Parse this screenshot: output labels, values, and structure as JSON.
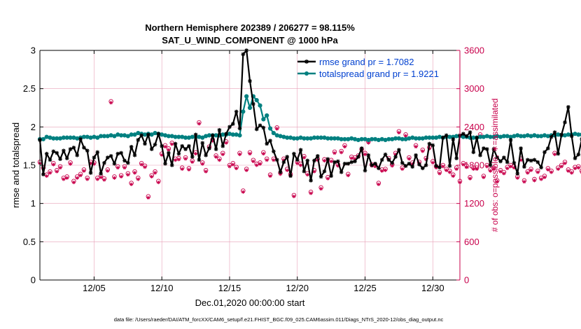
{
  "title_line1": "Northern Hemisphere 202389 / 206277 = 98.115%",
  "title_line2": "SAT_U_WIND_COMPONENT @ 1000 hPa",
  "xlabel": "Dec.01,2020 00:00:00 start",
  "ylabel_left": "rmse and totalspread",
  "ylabel_right": "# of obs: o=possible; ∗=assimilated",
  "footer": "data file: /Users/raeder/DAI/ATM_forcXX/CAM6_setup/f.e21.FHIST_BGC.f09_025.CAM6assim.011/Diags_NTrS_2020-12/obs_diag_output.nc",
  "colors": {
    "rmse": "#000000",
    "spread": "#008080",
    "obs": "#c8004b",
    "grid": "#e8a0b8",
    "legend_text": "#0040d0"
  },
  "chart_data": {
    "type": "line",
    "title": "Northern Hemisphere 202389 / 206277 = 98.115% — SAT_U_WIND_COMPONENT @ 1000 hPa",
    "xlabel": "Dec.01,2020 00:00:00 start",
    "ylabel": "rmse and totalspread",
    "y2label": "# of obs: o=possible; ∗=assimilated",
    "xlim": [
      1,
      32
    ],
    "ylim": [
      0,
      3
    ],
    "y2lim": [
      0,
      3600
    ],
    "x_ticks": [
      {
        "day": 5,
        "label": "12/05"
      },
      {
        "day": 10,
        "label": "12/10"
      },
      {
        "day": 15,
        "label": "12/15"
      },
      {
        "day": 20,
        "label": "12/20"
      },
      {
        "day": 25,
        "label": "12/25"
      },
      {
        "day": 30,
        "label": "12/30"
      }
    ],
    "y_ticks": [
      "0",
      "0.5",
      "1",
      "1.5",
      "2",
      "2.5",
      "3"
    ],
    "y2_ticks": [
      "0",
      "600",
      "1200",
      "1800",
      "2400",
      "3000",
      "3600"
    ],
    "legend": [
      {
        "name": "rmse grand pr = 1.7082",
        "series": "rmse"
      },
      {
        "name": "totalspread grand pr = 1.9221",
        "series": "totalspread"
      }
    ],
    "series": [
      {
        "name": "rmse",
        "values": [
          1.83,
          1.38,
          1.65,
          1.57,
          1.68,
          1.66,
          1.58,
          1.69,
          1.59,
          1.71,
          1.73,
          1.63,
          1.84,
          1.73,
          1.69,
          1.4,
          1.6,
          1.67,
          1.39,
          1.53,
          1.6,
          1.62,
          1.52,
          1.65,
          1.66,
          1.56,
          1.53,
          1.74,
          1.63,
          1.83,
          1.89,
          1.78,
          1.9,
          1.71,
          1.77,
          1.91,
          1.75,
          1.52,
          1.66,
          1.5,
          1.78,
          1.65,
          1.75,
          1.71,
          1.75,
          1.61,
          1.9,
          1.57,
          1.79,
          1.63,
          1.72,
          1.89,
          1.71,
          1.96,
          1.75,
          1.91,
          2.0,
          2.04,
          2.2,
          1.98,
          2.95,
          3.0,
          2.6,
          2.3,
          1.97,
          2.02,
          1.99,
          1.78,
          1.82,
          1.68,
          1.57,
          1.41,
          1.54,
          1.61,
          1.36,
          1.65,
          1.57,
          1.7,
          1.42,
          1.56,
          1.3,
          1.56,
          1.62,
          1.35,
          1.42,
          1.58,
          1.36,
          1.54,
          1.55,
          1.41,
          1.52,
          1.52,
          1.54,
          1.55,
          1.61,
          1.72,
          1.43,
          1.63,
          1.5,
          1.52,
          1.46,
          1.57,
          1.64,
          1.57,
          1.53,
          1.61,
          1.7,
          1.53,
          1.49,
          1.52,
          1.48,
          1.63,
          1.51,
          1.46,
          1.5,
          1.78,
          1.76,
          1.49,
          1.47,
          1.86,
          1.89,
          1.49,
          1.84,
          1.59,
          1.89,
          1.91,
          1.88,
          1.93,
          1.67,
          1.86,
          1.63,
          1.72,
          1.71,
          1.5,
          1.71,
          1.6,
          1.55,
          1.6,
          1.54,
          1.83,
          1.53,
          1.39,
          1.72,
          1.48,
          1.57,
          1.56,
          1.57,
          1.54,
          1.47,
          1.67,
          1.72,
          1.87,
          1.93,
          1.65,
          1.9,
          2.06,
          2.26,
          1.88,
          1.59,
          1.64,
          1.84,
          1.86,
          1.65,
          1.58,
          1.83,
          1.99,
          1.79,
          1.67,
          1.4,
          1.57,
          1.57,
          1.61
        ]
      },
      {
        "name": "totalspread",
        "values": [
          1.84,
          1.84,
          1.87,
          1.86,
          1.85,
          1.85,
          1.85,
          1.86,
          1.86,
          1.86,
          1.86,
          1.85,
          1.86,
          1.87,
          1.87,
          1.86,
          1.87,
          1.86,
          1.88,
          1.88,
          1.88,
          1.89,
          1.88,
          1.9,
          1.89,
          1.89,
          1.88,
          1.9,
          1.9,
          1.92,
          1.91,
          1.9,
          1.91,
          1.9,
          1.92,
          1.91,
          1.9,
          1.89,
          1.88,
          1.88,
          1.87,
          1.87,
          1.87,
          1.86,
          1.86,
          1.87,
          1.87,
          1.87,
          1.86,
          1.88,
          1.89,
          1.89,
          1.89,
          1.89,
          1.9,
          1.9,
          1.91,
          1.9,
          1.9,
          1.89,
          2.2,
          2.4,
          2.25,
          2.4,
          2.35,
          2.28,
          2.1,
          2.15,
          1.98,
          1.92,
          1.89,
          1.88,
          1.87,
          1.86,
          1.86,
          1.85,
          1.85,
          1.86,
          1.85,
          1.85,
          1.85,
          1.86,
          1.86,
          1.86,
          1.86,
          1.85,
          1.85,
          1.85,
          1.85,
          1.84,
          1.84,
          1.84,
          1.85,
          1.84,
          1.83,
          1.84,
          1.84,
          1.83,
          1.84,
          1.84,
          1.83,
          1.84,
          1.83,
          1.84,
          1.84,
          1.85,
          1.85,
          1.84,
          1.84,
          1.85,
          1.86,
          1.85,
          1.85,
          1.85,
          1.86,
          1.86,
          1.86,
          1.86,
          1.87,
          1.86,
          1.87,
          1.87,
          1.87,
          1.88,
          1.88,
          1.87,
          1.87,
          1.86,
          1.86,
          1.86,
          1.87,
          1.87,
          1.88,
          1.87,
          1.87,
          1.88,
          1.87,
          1.88,
          1.88,
          1.87,
          1.88,
          1.89,
          1.88,
          1.88,
          1.89,
          1.88,
          1.89,
          1.88,
          1.88,
          1.89,
          1.88,
          1.89,
          1.89,
          1.9,
          1.89,
          1.89,
          1.9,
          1.9,
          1.91,
          1.9,
          1.9,
          1.9,
          1.91,
          1.92,
          1.91,
          1.92,
          1.91,
          1.91,
          1.92,
          1.92,
          1.91,
          1.92,
          1.91,
          1.92
        ]
      },
      {
        "name": "obs_possible",
        "values": [
          1850,
          1760,
          1650,
          1700,
          1830,
          1720,
          1780,
          1600,
          1620,
          1840,
          1550,
          1620,
          1660,
          1730,
          1600,
          1850,
          1840,
          1600,
          1630,
          1590,
          1730,
          2800,
          1620,
          1780,
          1640,
          1780,
          1670,
          1520,
          1700,
          1600,
          1830,
          1790,
          1310,
          1640,
          1700,
          1550,
          1980,
          2110,
          2060,
          2150,
          1900,
          1910,
          1760,
          1920,
          1750,
          1870,
          2000,
          2470,
          1840,
          1720,
          2090,
          2200,
          1950,
          1900,
          1990,
          2170,
          1800,
          1830,
          1770,
          1990,
          1400,
          1740,
          2000,
          1880,
          1820,
          1840,
          2000,
          1900,
          1650,
          1900,
          2390,
          1680,
          1900,
          1740,
          1660,
          1330,
          1850,
          1820,
          1940,
          1670,
          1380,
          1720,
          1900,
          1450,
          1890,
          1610,
          1880,
          2010,
          1810,
          2020,
          2110,
          1660,
          1930,
          1920,
          1950,
          2050,
          1990,
          2170,
          1810,
          1800,
          1520,
          1730,
          1740,
          1910,
          1810,
          1990,
          2330,
          1760,
          2280,
          1920,
          1840,
          2110,
          1850,
          2040,
          1910,
          2080,
          1860,
          1780,
          1690,
          1800,
          1740,
          1710,
          1650,
          1760,
          1550,
          1830,
          1790,
          1610,
          1760,
          1760,
          2280,
          1630,
          1800,
          1730,
          1760,
          1560,
          1720,
          1690,
          1770,
          1800,
          1780,
          1620,
          1900,
          1560,
          1700,
          1740,
          1580,
          1710,
          1600,
          1630,
          1750,
          1710,
          1990,
          1760,
          1800,
          1850,
          1730,
          1700,
          1770,
          1780,
          1710,
          1870,
          1520,
          1650,
          1520,
          1700,
          1700,
          2500,
          1500,
          1520,
          1670,
          2020,
          1910,
          1670,
          1620,
          1730,
          1660
        ]
      },
      {
        "name": "obs_assimilated",
        "values": [
          1830,
          1740,
          1630,
          1680,
          1810,
          1700,
          1760,
          1580,
          1600,
          1820,
          1530,
          1600,
          1640,
          1710,
          1580,
          1830,
          1820,
          1580,
          1610,
          1570,
          1710,
          2780,
          1600,
          1760,
          1620,
          1760,
          1650,
          1500,
          1680,
          1580,
          1810,
          1770,
          1290,
          1620,
          1680,
          1530,
          1960,
          2090,
          2040,
          2130,
          1880,
          1890,
          1740,
          1900,
          1730,
          1850,
          1980,
          2450,
          1820,
          1700,
          2070,
          2180,
          1930,
          1880,
          1970,
          2150,
          1780,
          1810,
          1750,
          1970,
          1380,
          1720,
          1980,
          1860,
          1800,
          1820,
          1980,
          1880,
          1630,
          1880,
          2370,
          1660,
          1880,
          1720,
          1640,
          1310,
          1830,
          1800,
          1920,
          1650,
          1360,
          1700,
          1880,
          1430,
          1870,
          1590,
          1860,
          1990,
          1790,
          2000,
          2090,
          1640,
          1910,
          1900,
          1930,
          2030,
          1970,
          2150,
          1790,
          1780,
          1500,
          1710,
          1720,
          1890,
          1790,
          1970,
          2310,
          1740,
          2260,
          1900,
          1820,
          2090,
          1830,
          2020,
          1890,
          2060,
          1840,
          1760,
          1670,
          1780,
          1720,
          1690,
          1630,
          1740,
          1530,
          1810,
          1770,
          1590,
          1740,
          1740,
          2260,
          1610,
          1780,
          1710,
          1740,
          1540,
          1700,
          1670,
          1750,
          1780,
          1760,
          1600,
          1880,
          1540,
          1680,
          1720,
          1560,
          1690,
          1580,
          1610,
          1730,
          1690,
          1970,
          1740,
          1780,
          1830,
          1710,
          1680,
          1750,
          1760,
          1690,
          1850,
          1500,
          1630,
          1500,
          1680,
          1680,
          2480,
          1480,
          1500,
          1650,
          2000,
          1890,
          1650,
          1600,
          1710,
          1640
        ]
      }
    ]
  }
}
